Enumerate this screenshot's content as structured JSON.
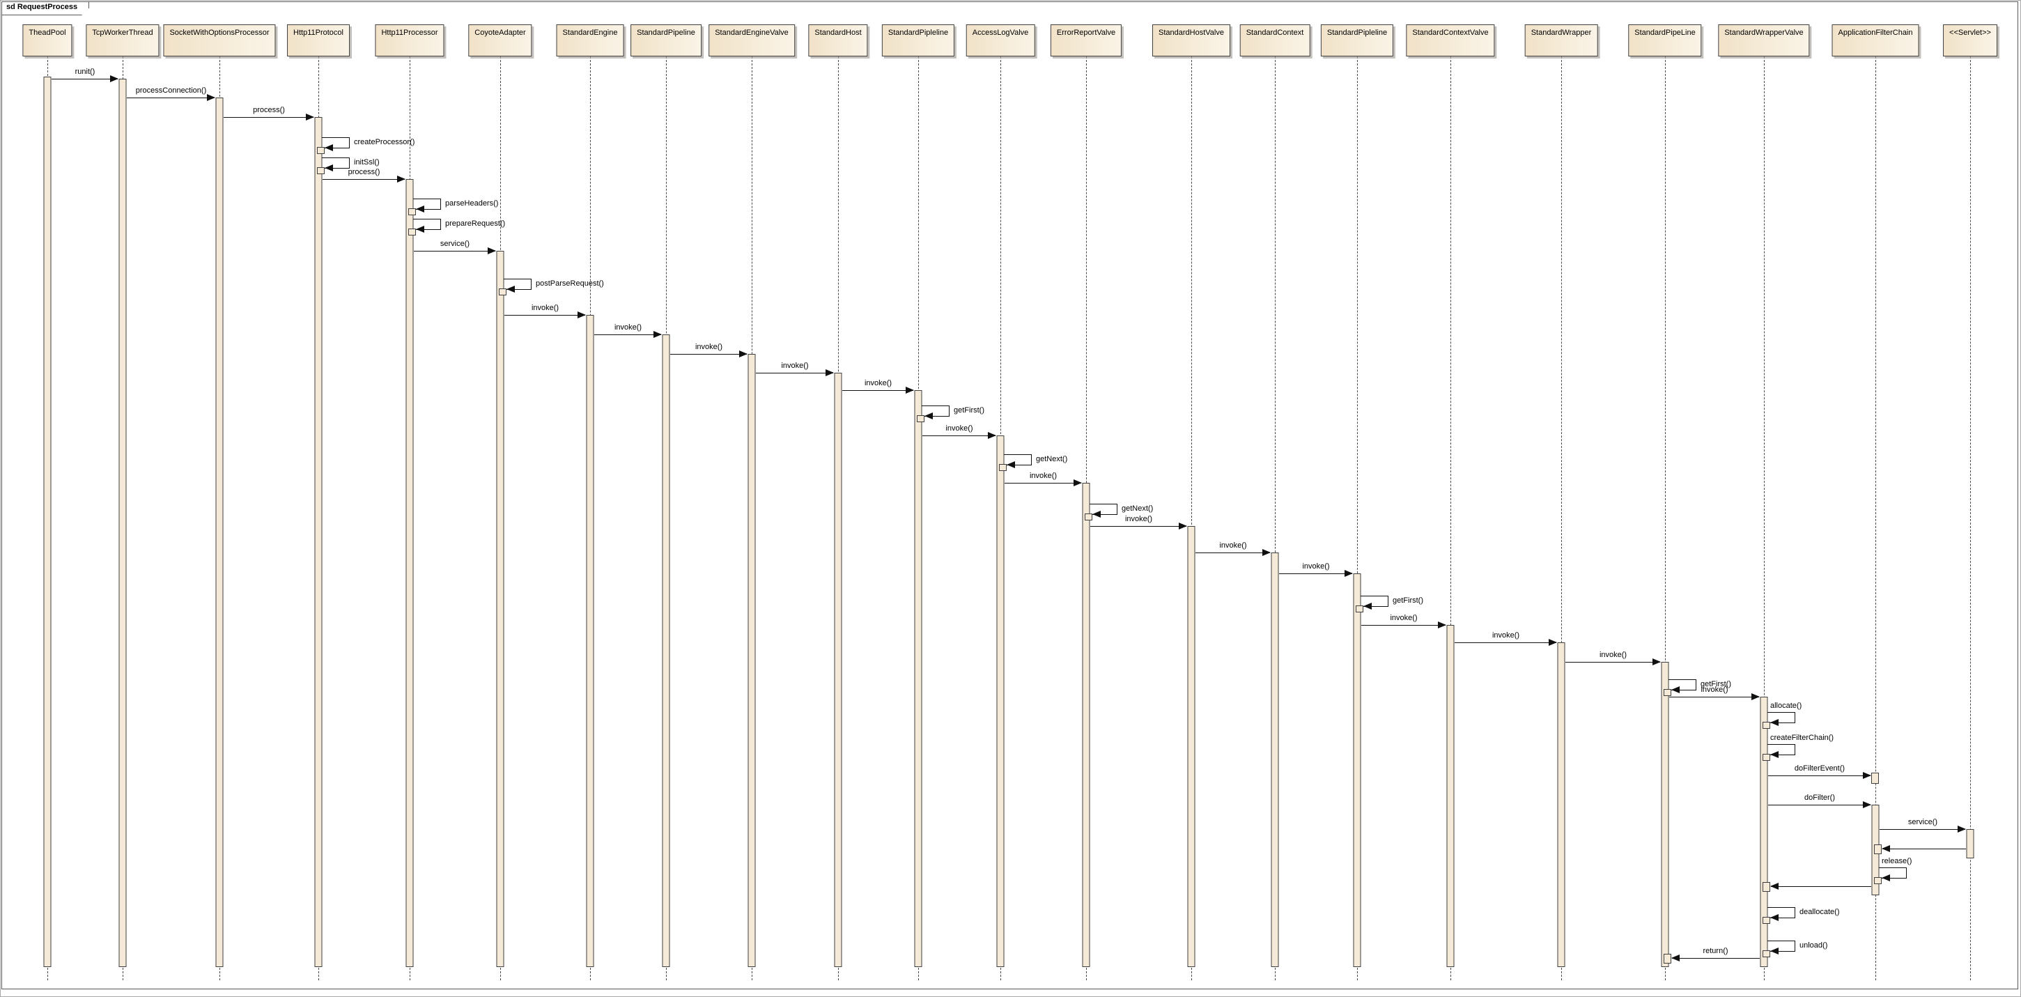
{
  "frame": {
    "label": "sd RequestProcess"
  },
  "lifelines": [
    {
      "name": "TheadPool"
    },
    {
      "name": "TcpWorkerThread"
    },
    {
      "name": "SocketWithOptionsProcessor"
    },
    {
      "name": "Http11Protocol"
    },
    {
      "name": "Http11Processor"
    },
    {
      "name": "CoyoteAdapter"
    },
    {
      "name": "StandardEngine"
    },
    {
      "name": "StandardPipeline"
    },
    {
      "name": "StandardEngineValve"
    },
    {
      "name": "StandardHost"
    },
    {
      "name": "StandardPipleline"
    },
    {
      "name": "AccessLogValve"
    },
    {
      "name": "ErrorReportValve"
    },
    {
      "name": "StandardHostValve"
    },
    {
      "name": "StandardContext"
    },
    {
      "name": "StandardPipleline"
    },
    {
      "name": "StandardContextValve"
    },
    {
      "name": "StandardWrapper"
    },
    {
      "name": "StandardPipeLine"
    },
    {
      "name": "StandardWrapperValve"
    },
    {
      "name": "ApplicationFilterChain"
    },
    {
      "name": "<<Servlet>>"
    }
  ],
  "messages": [
    {
      "from": 0,
      "to": 1,
      "label": "runit()",
      "type": "call"
    },
    {
      "from": 1,
      "to": 2,
      "label": "processConnection()",
      "type": "call"
    },
    {
      "from": 2,
      "to": 3,
      "label": "process()",
      "type": "call"
    },
    {
      "at": 3,
      "label": "createProcessor()",
      "type": "self"
    },
    {
      "at": 3,
      "label": "initSsl()",
      "type": "self"
    },
    {
      "from": 3,
      "to": 4,
      "label": "process()",
      "type": "call"
    },
    {
      "at": 4,
      "label": "parseHeaders()",
      "type": "self"
    },
    {
      "at": 4,
      "label": "prepareRequest()",
      "type": "self"
    },
    {
      "from": 4,
      "to": 5,
      "label": "service()",
      "type": "call"
    },
    {
      "at": 5,
      "label": "postParseRequest()",
      "type": "self"
    },
    {
      "from": 5,
      "to": 6,
      "label": "invoke()",
      "type": "call"
    },
    {
      "from": 6,
      "to": 7,
      "label": "invoke()",
      "type": "call"
    },
    {
      "from": 7,
      "to": 8,
      "label": "invoke()",
      "type": "call"
    },
    {
      "from": 8,
      "to": 9,
      "label": "invoke()",
      "type": "call"
    },
    {
      "from": 9,
      "to": 10,
      "label": "invoke()",
      "type": "call"
    },
    {
      "at": 10,
      "label": "getFirst()",
      "type": "self"
    },
    {
      "from": 10,
      "to": 11,
      "label": "invoke()",
      "type": "call"
    },
    {
      "at": 11,
      "label": "getNext()",
      "type": "self"
    },
    {
      "from": 11,
      "to": 12,
      "label": "invoke()",
      "type": "call"
    },
    {
      "at": 12,
      "label": "getNext()",
      "type": "self"
    },
    {
      "from": 12,
      "to": 13,
      "label": "invoke()",
      "type": "call"
    },
    {
      "from": 13,
      "to": 14,
      "label": "invoke()",
      "type": "call"
    },
    {
      "from": 14,
      "to": 15,
      "label": "invoke()",
      "type": "call"
    },
    {
      "at": 15,
      "label": "getFirst()",
      "type": "self"
    },
    {
      "from": 15,
      "to": 16,
      "label": "invoke()",
      "type": "call"
    },
    {
      "from": 16,
      "to": 17,
      "label": "invoke()",
      "type": "call"
    },
    {
      "from": 17,
      "to": 18,
      "label": "invoke()",
      "type": "call"
    },
    {
      "at": 18,
      "label": "getFirst()",
      "type": "self"
    },
    {
      "from": 18,
      "to": 19,
      "label": "invoke()",
      "type": "call"
    },
    {
      "at": 19,
      "label": "allocate()",
      "type": "self",
      "label_pos": "above"
    },
    {
      "at": 19,
      "label": "createFilterChain()",
      "type": "self",
      "label_pos": "above"
    },
    {
      "from": 19,
      "to": 20,
      "label": "doFilterEvent()",
      "type": "call",
      "short_target": true
    },
    {
      "from": 19,
      "to": 20,
      "label": "doFilter()",
      "type": "call"
    },
    {
      "from": 20,
      "to": 21,
      "label": "service()",
      "type": "call"
    },
    {
      "from": 21,
      "to": 20,
      "label": "",
      "type": "return"
    },
    {
      "at": 20,
      "label": "release()",
      "type": "self",
      "label_pos": "above"
    },
    {
      "from": 20,
      "to": 19,
      "label": "",
      "type": "return"
    },
    {
      "at": 19,
      "label": "deallocate()",
      "type": "self"
    },
    {
      "at": 19,
      "label": "unload()",
      "type": "self"
    },
    {
      "from": 19,
      "to": 18,
      "label": "return()",
      "type": "return"
    }
  ],
  "colors": {
    "background": "#ffffff",
    "header_fill_left": "#f1e2c8",
    "header_fill_right": "#faf4e7",
    "activation_fill": "#f5ead7",
    "line": "#101010",
    "border": "#3f3f3f"
  }
}
